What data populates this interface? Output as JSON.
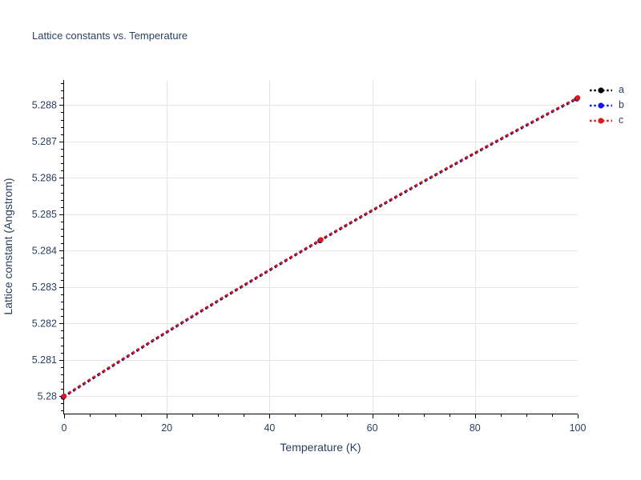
{
  "title": {
    "text": "Lattice constants vs. Temperature",
    "color": "#2a3f5f"
  },
  "axes": {
    "x_label": "Temperature (K)",
    "y_label": "Lattice constant (Angstrom)"
  },
  "legend": {
    "position": "top-right",
    "entries": [
      {
        "label": "a",
        "color": "#000000"
      },
      {
        "label": "b",
        "color": "#1717e0"
      },
      {
        "label": "c",
        "color": "#e01717"
      }
    ]
  },
  "chart_data": {
    "type": "line",
    "title": "Lattice constants vs. Temperature",
    "xlabel": "Temperature (K)",
    "ylabel": "Lattice constant (Angstrom)",
    "xlim": [
      0,
      100
    ],
    "ylim": [
      5.27952,
      5.28869
    ],
    "x_ticks": [
      0,
      20,
      40,
      60,
      80,
      100
    ],
    "x_tick_labels": [
      "0",
      "20",
      "40",
      "60",
      "80",
      "100"
    ],
    "x_minor_step": 5,
    "y_ticks": [
      5.28,
      5.281,
      5.282,
      5.283,
      5.284,
      5.285,
      5.286,
      5.287,
      5.288
    ],
    "y_tick_labels": [
      "5.28",
      "5.281",
      "5.282",
      "5.283",
      "5.284",
      "5.285",
      "5.286",
      "5.287",
      "5.288"
    ],
    "y_minor_step": 0.0002,
    "grid": true,
    "legend_position": "top-right",
    "x": [
      0,
      50,
      100
    ],
    "series": [
      {
        "name": "a",
        "color": "#000000",
        "line_style": "dotted",
        "marker": "circle",
        "values": [
          5.28,
          5.2843,
          5.2882
        ]
      },
      {
        "name": "b",
        "color": "#1717e0",
        "line_style": "dotted",
        "marker": "circle",
        "values": [
          5.28,
          5.2843,
          5.2882
        ]
      },
      {
        "name": "c",
        "color": "#e01717",
        "line_style": "dotted",
        "marker": "circle",
        "values": [
          5.28,
          5.2843,
          5.2882
        ]
      }
    ],
    "colors": {
      "grid": "#e5e5e5",
      "axis": "#000000",
      "text": "#2a3f5f",
      "background": "#ffffff"
    }
  }
}
